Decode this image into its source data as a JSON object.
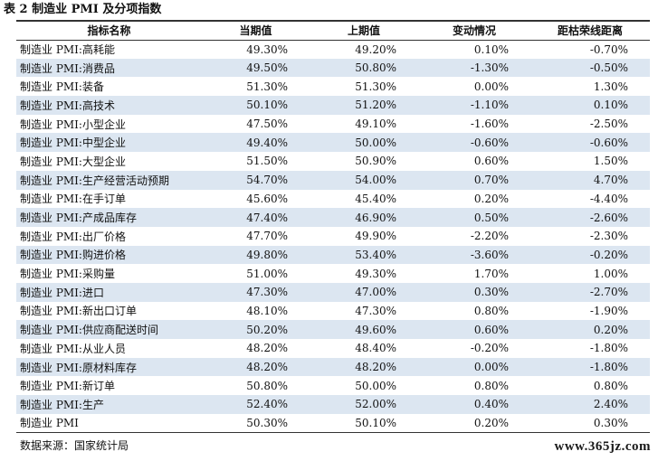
{
  "caption": "表 2 制造业 PMI 及分项指数",
  "table": {
    "headers": [
      "指标名称",
      "当期值",
      "上期值",
      "变动情况",
      "距枯荣线距离"
    ],
    "rows": [
      [
        "制造业 PMI:高耗能",
        "49.30%",
        "49.20%",
        "0.10%",
        "-0.70%"
      ],
      [
        "制造业 PMI:消费品",
        "49.50%",
        "50.80%",
        "-1.30%",
        "-0.50%"
      ],
      [
        "制造业 PMI:装备",
        "51.30%",
        "51.30%",
        "0.00%",
        "1.30%"
      ],
      [
        "制造业 PMI:高技术",
        "50.10%",
        "51.20%",
        "-1.10%",
        "0.10%"
      ],
      [
        "制造业 PMI:小型企业",
        "47.50%",
        "49.10%",
        "-1.60%",
        "-2.50%"
      ],
      [
        "制造业 PMI:中型企业",
        "49.40%",
        "50.00%",
        "-0.60%",
        "-0.60%"
      ],
      [
        "制造业 PMI:大型企业",
        "51.50%",
        "50.90%",
        "0.60%",
        "1.50%"
      ],
      [
        "制造业 PMI:生产经营活动预期",
        "54.70%",
        "54.00%",
        "0.70%",
        "4.70%"
      ],
      [
        "制造业 PMI:在手订单",
        "45.60%",
        "45.40%",
        "0.20%",
        "-4.40%"
      ],
      [
        "制造业 PMI:产成品库存",
        "47.40%",
        "46.90%",
        "0.50%",
        "-2.60%"
      ],
      [
        "制造业 PMI:出厂价格",
        "47.70%",
        "49.90%",
        "-2.20%",
        "-2.30%"
      ],
      [
        "制造业 PMI:购进价格",
        "49.80%",
        "53.40%",
        "-3.60%",
        "-0.20%"
      ],
      [
        "制造业 PMI:采购量",
        "51.00%",
        "49.30%",
        "1.70%",
        "1.00%"
      ],
      [
        "制造业 PMI:进口",
        "47.30%",
        "47.00%",
        "0.30%",
        "-2.70%"
      ],
      [
        "制造业 PMI:新出口订单",
        "48.10%",
        "47.30%",
        "0.80%",
        "-1.90%"
      ],
      [
        "制造业 PMI:供应商配送时间",
        "50.20%",
        "49.60%",
        "0.60%",
        "0.20%"
      ],
      [
        "制造业 PMI:从业人员",
        "48.20%",
        "48.40%",
        "-0.20%",
        "-1.80%"
      ],
      [
        "制造业 PMI:原材料库存",
        "48.20%",
        "48.20%",
        "0.00%",
        "-1.80%"
      ],
      [
        "制造业 PMI:新订单",
        "50.80%",
        "50.00%",
        "0.80%",
        "0.80%"
      ],
      [
        "制造业 PMI:生产",
        "52.40%",
        "52.00%",
        "0.40%",
        "2.40%"
      ],
      [
        "制造业 PMI",
        "50.30%",
        "50.10%",
        "0.20%",
        "0.30%"
      ]
    ]
  },
  "source": "数据来源：国家统计局",
  "watermark": "www.365jz.com"
}
